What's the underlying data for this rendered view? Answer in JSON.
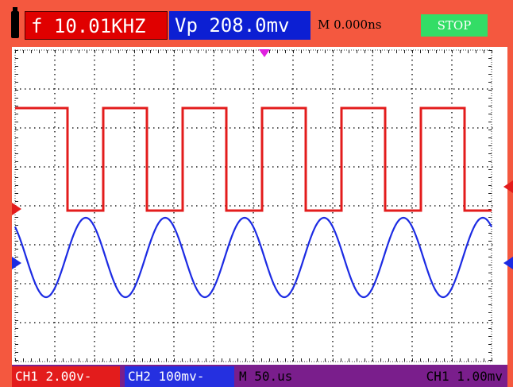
{
  "top_bar": {
    "frequency": "f 10.01KHZ",
    "vpeak": "Vp 208.0mv",
    "time_position": "M 0.000ns",
    "stop_label": "STOP"
  },
  "bottom_bar": {
    "ch1_scale": "CH1 2.00v-",
    "ch2_scale": "CH2 100mv-",
    "timebase": "M 50.us",
    "trigger": "CH1 1.00mv"
  },
  "colors": {
    "background": "#f4583f",
    "ch1_trace": "#e31c1c",
    "ch2_trace": "#1c2be3",
    "trigger_marker": "#e020e0",
    "stop_button": "#33dd66",
    "grid_dots": "#222222"
  },
  "icons": [
    "battery-icon",
    "trigger-marker-icon",
    "ch1-level-marker-icon",
    "ch2-level-marker-icon"
  ]
}
